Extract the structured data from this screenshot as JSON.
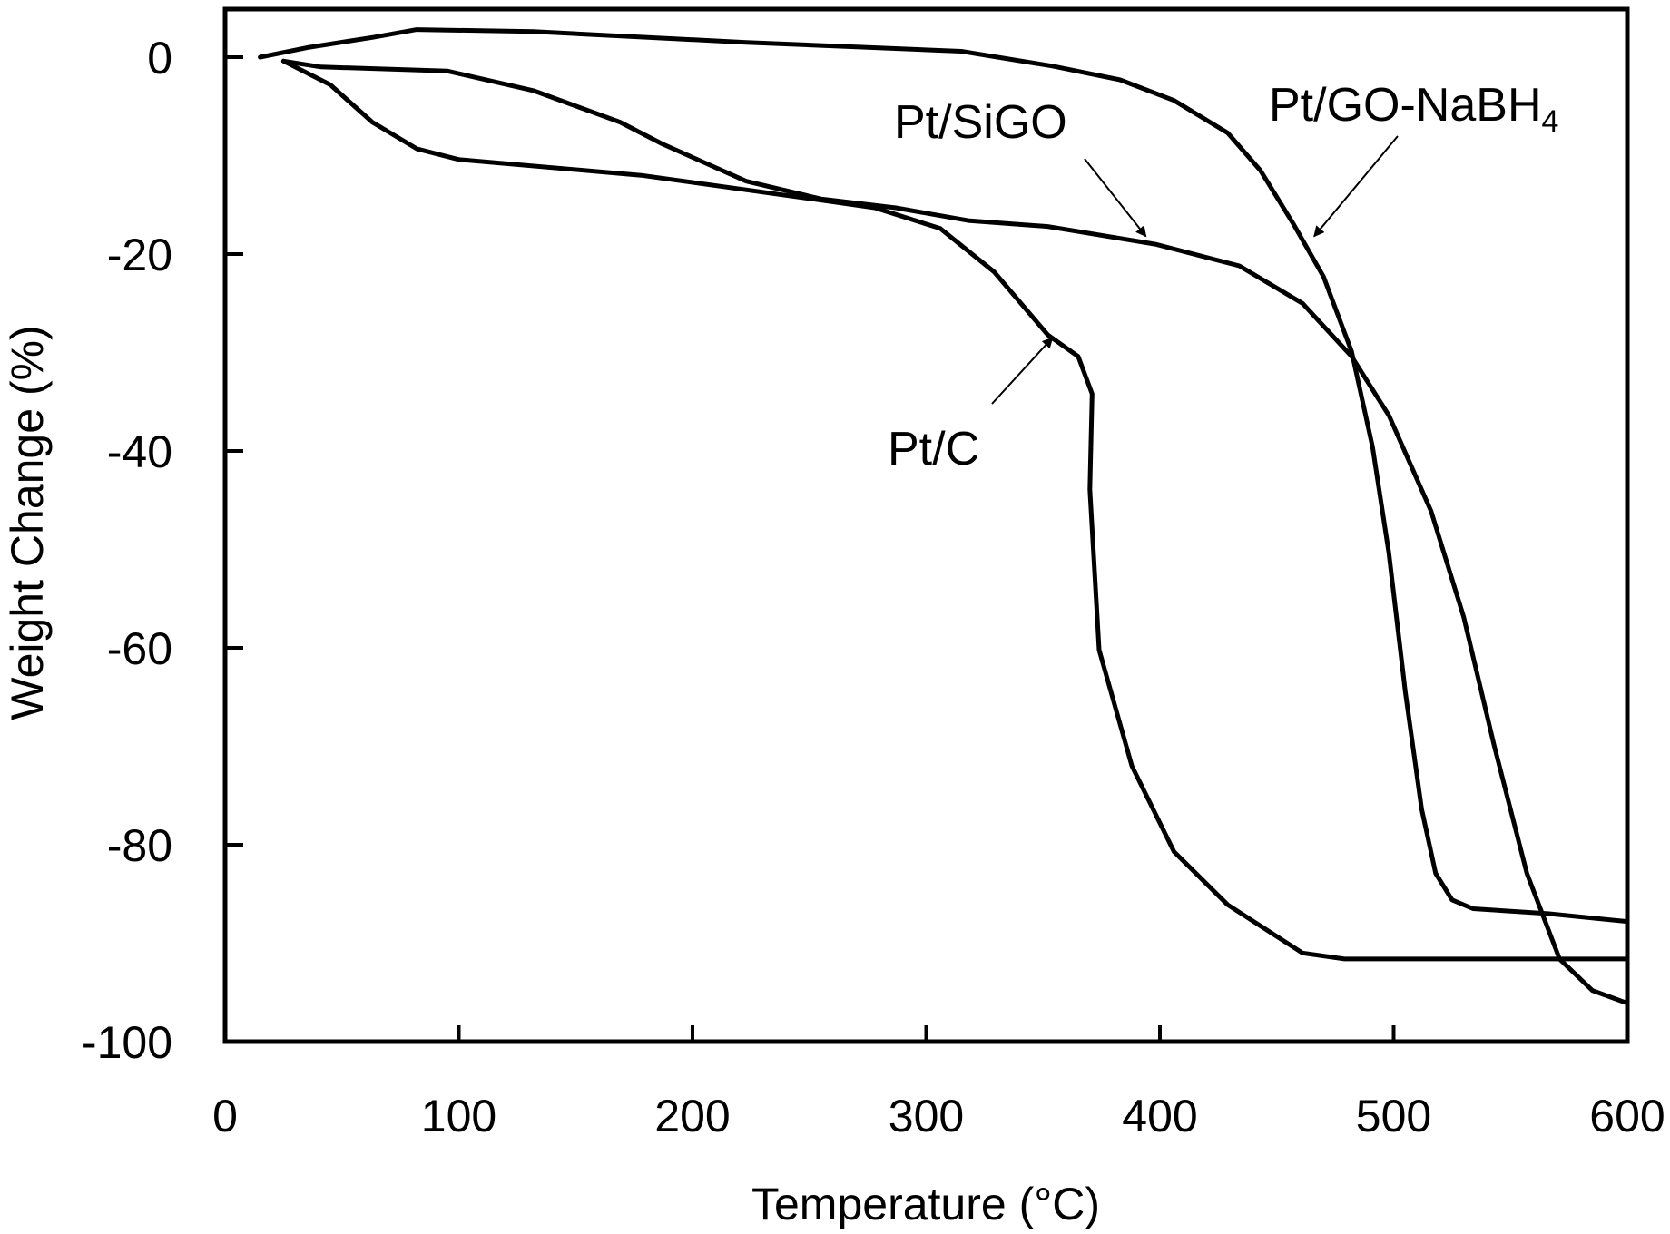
{
  "chart_data": {
    "type": "line",
    "title": "",
    "xlabel": "Temperature (°C)",
    "ylabel": "Weight Change (%)",
    "xlim": [
      0,
      600
    ],
    "ylim": [
      -100,
      5
    ],
    "xticks": [
      0,
      100,
      200,
      300,
      400,
      500,
      600
    ],
    "yticks": [
      0,
      -20,
      -40,
      -60,
      -80,
      -100
    ],
    "xtick_labels": [
      "0",
      "100",
      "200",
      "300",
      "400",
      "500",
      "600"
    ],
    "ytick_labels": [
      "0",
      "-20",
      "-40",
      "-60",
      "-80",
      "-100"
    ],
    "grid": false,
    "series": [
      {
        "name": "Pt/GO-NaBH4",
        "x": [
          15,
          36,
          63,
          82,
          132,
          223,
          315,
          354,
          383,
          406,
          429,
          443,
          457,
          470,
          482,
          491,
          498,
          505,
          512,
          518,
          525,
          534,
          566,
          600
        ],
        "y": [
          0,
          1,
          2,
          2.8,
          2.6,
          1.5,
          0.6,
          -0.9,
          -2.3,
          -4.4,
          -7.7,
          -11.5,
          -16.9,
          -22.3,
          -29.9,
          -39.6,
          -50.4,
          -64.5,
          -76.4,
          -82.9,
          -85.6,
          -86.5,
          -87,
          -87.8
        ]
      },
      {
        "name": "Pt/SiGO",
        "x": [
          25,
          41,
          95,
          132,
          169,
          187,
          223,
          255,
          287,
          318,
          352,
          398,
          434,
          461,
          482,
          498,
          516,
          530,
          543,
          557,
          571,
          585,
          600
        ],
        "y": [
          -0.4,
          -1,
          -1.4,
          -3.4,
          -6.6,
          -8.8,
          -12.6,
          -14.4,
          -15.3,
          -16.6,
          -17.2,
          -19,
          -21.2,
          -25,
          -30.4,
          -36.4,
          -46.1,
          -56.9,
          -69.9,
          -82.9,
          -91.6,
          -94.8,
          -96.1
        ]
      },
      {
        "name": "Pt/C",
        "x": [
          25,
          45,
          63,
          82,
          100,
          178,
          251,
          278,
          306,
          329,
          352,
          365,
          371,
          370,
          374,
          388,
          406,
          429,
          461,
          479,
          600
        ],
        "y": [
          -0.4,
          -2.8,
          -6.6,
          -9.3,
          -10.4,
          -12,
          -14.4,
          -15.3,
          -17.4,
          -21.8,
          -28.2,
          -30.4,
          -34.2,
          -43.9,
          -60.2,
          -72,
          -80.7,
          -86.1,
          -91,
          -91.6,
          -91.6
        ]
      }
    ],
    "annotations": [
      {
        "text": "Pt/SiGO",
        "arrow_to": [
          394,
          -18.2
        ]
      },
      {
        "text": "Pt/GO-NaBH",
        "subscript": "4",
        "arrow_to": [
          466,
          -18.2
        ]
      },
      {
        "text": "Pt/C",
        "arrow_to": [
          354,
          -28.5
        ]
      }
    ]
  }
}
